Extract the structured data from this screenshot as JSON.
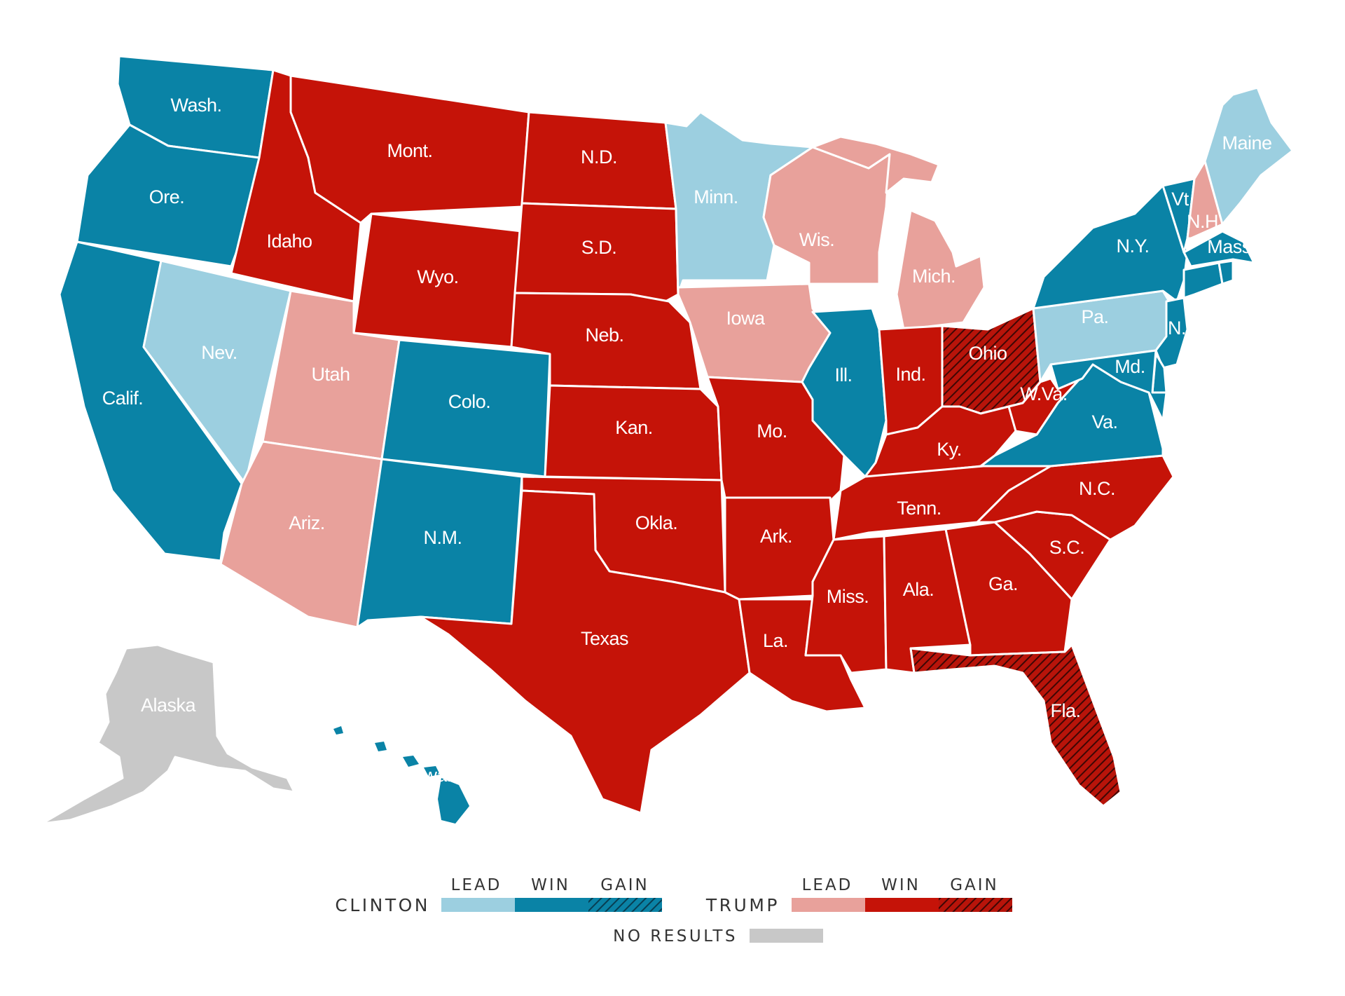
{
  "colors": {
    "clinton_lead": "#9ccfe0",
    "clinton_win": "#0a83a6",
    "clinton_gain": "#0a5f79",
    "trump_lead": "#e8a19b",
    "trump_win": "#c51308",
    "trump_gain": "#8a1410",
    "no_results": "#c8c8c8"
  },
  "states": [
    {
      "id": "WA",
      "label": "Wash.",
      "status": "clinton_win"
    },
    {
      "id": "OR",
      "label": "Ore.",
      "status": "clinton_win"
    },
    {
      "id": "CA",
      "label": "Calif.",
      "status": "clinton_win"
    },
    {
      "id": "NV",
      "label": "Nev.",
      "status": "clinton_lead"
    },
    {
      "id": "ID",
      "label": "Idaho",
      "status": "trump_win"
    },
    {
      "id": "MT",
      "label": "Mont.",
      "status": "trump_win"
    },
    {
      "id": "WY",
      "label": "Wyo.",
      "status": "trump_win"
    },
    {
      "id": "UT",
      "label": "Utah",
      "status": "trump_lead"
    },
    {
      "id": "AZ",
      "label": "Ariz.",
      "status": "trump_lead"
    },
    {
      "id": "CO",
      "label": "Colo.",
      "status": "clinton_win"
    },
    {
      "id": "NM",
      "label": "N.M.",
      "status": "clinton_win"
    },
    {
      "id": "ND",
      "label": "N.D.",
      "status": "trump_win"
    },
    {
      "id": "SD",
      "label": "S.D.",
      "status": "trump_win"
    },
    {
      "id": "NE",
      "label": "Neb.",
      "status": "trump_win"
    },
    {
      "id": "KS",
      "label": "Kan.",
      "status": "trump_win"
    },
    {
      "id": "OK",
      "label": "Okla.",
      "status": "trump_win"
    },
    {
      "id": "TX",
      "label": "Texas",
      "status": "trump_win"
    },
    {
      "id": "MN",
      "label": "Minn.",
      "status": "clinton_lead"
    },
    {
      "id": "IA",
      "label": "Iowa",
      "status": "trump_lead"
    },
    {
      "id": "MO",
      "label": "Mo.",
      "status": "trump_win"
    },
    {
      "id": "AR",
      "label": "Ark.",
      "status": "trump_win"
    },
    {
      "id": "LA",
      "label": "La.",
      "status": "trump_win"
    },
    {
      "id": "WI",
      "label": "Wis.",
      "status": "trump_lead"
    },
    {
      "id": "MI",
      "label": "Mich.",
      "status": "trump_lead"
    },
    {
      "id": "IL",
      "label": "Ill.",
      "status": "clinton_win"
    },
    {
      "id": "IN",
      "label": "Ind.",
      "status": "trump_win"
    },
    {
      "id": "OH",
      "label": "Ohio",
      "status": "trump_gain"
    },
    {
      "id": "KY",
      "label": "Ky.",
      "status": "trump_win"
    },
    {
      "id": "TN",
      "label": "Tenn.",
      "status": "trump_win"
    },
    {
      "id": "MS",
      "label": "Miss.",
      "status": "trump_win"
    },
    {
      "id": "AL",
      "label": "Ala.",
      "status": "trump_win"
    },
    {
      "id": "GA",
      "label": "Ga.",
      "status": "trump_win"
    },
    {
      "id": "FL",
      "label": "Fla.",
      "status": "trump_gain"
    },
    {
      "id": "SC",
      "label": "S.C.",
      "status": "trump_win"
    },
    {
      "id": "NC",
      "label": "N.C.",
      "status": "trump_win"
    },
    {
      "id": "VA",
      "label": "Va.",
      "status": "clinton_win"
    },
    {
      "id": "WV",
      "label": "W.Va.",
      "status": "trump_win"
    },
    {
      "id": "PA",
      "label": "Pa.",
      "status": "clinton_lead"
    },
    {
      "id": "NY",
      "label": "N.Y.",
      "status": "clinton_win"
    },
    {
      "id": "VT",
      "label": "Vt.",
      "status": "clinton_win"
    },
    {
      "id": "NH",
      "label": "N.H.",
      "status": "trump_lead"
    },
    {
      "id": "ME",
      "label": "Maine",
      "status": "clinton_lead"
    },
    {
      "id": "MA",
      "label": "Mass.",
      "status": "clinton_win"
    },
    {
      "id": "NJ",
      "label": "N.J.",
      "status": "clinton_win"
    },
    {
      "id": "MD",
      "label": "Md.",
      "status": "clinton_win"
    },
    {
      "id": "AK",
      "label": "Alaska",
      "status": "no_results"
    },
    {
      "id": "HI",
      "label": "Hawaii",
      "status": "clinton_win"
    },
    {
      "id": "CT",
      "label": "",
      "status": "clinton_win"
    },
    {
      "id": "RI",
      "label": "",
      "status": "clinton_win"
    },
    {
      "id": "DE",
      "label": "",
      "status": "clinton_win"
    }
  ],
  "legend": {
    "clinton": {
      "name": "CLINTON",
      "headings": [
        "LEAD",
        "WIN",
        "GAIN"
      ]
    },
    "trump": {
      "name": "TRUMP",
      "headings": [
        "LEAD",
        "WIN",
        "GAIN"
      ]
    },
    "no_results": "NO RESULTS"
  }
}
